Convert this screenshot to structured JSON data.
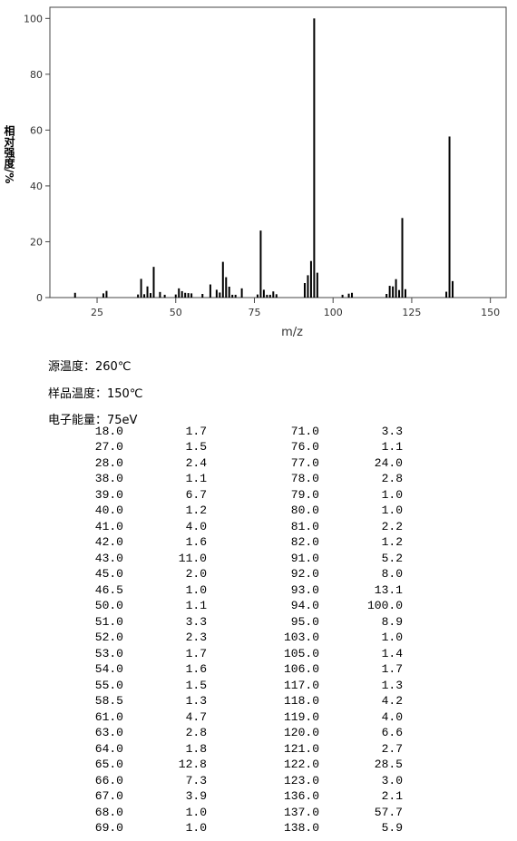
{
  "chart_data": {
    "type": "bar",
    "x_label": "m/z",
    "y_label": "相对强度/%",
    "x": [
      18,
      27,
      28,
      38,
      39,
      40,
      41,
      42,
      43,
      45,
      46.5,
      50,
      51,
      52,
      53,
      54,
      55,
      58.5,
      61,
      63,
      64,
      65,
      66,
      67,
      68,
      69,
      71,
      76,
      77,
      78,
      79,
      80,
      81,
      82,
      91,
      92,
      93,
      94,
      95,
      103,
      105,
      106,
      117,
      118,
      119,
      120,
      121,
      122,
      123,
      136,
      137,
      138
    ],
    "x_labels": [
      "18.0",
      "27.0",
      "28.0",
      "38.0",
      "39.0",
      "40.0",
      "41.0",
      "42.0",
      "43.0",
      "45.0",
      "46.5",
      "50.0",
      "51.0",
      "52.0",
      "53.0",
      "54.0",
      "55.0",
      "58.5",
      "61.0",
      "63.0",
      "64.0",
      "65.0",
      "66.0",
      "67.0",
      "68.0",
      "69.0",
      "71.0",
      "76.0",
      "77.0",
      "78.0",
      "79.0",
      "80.0",
      "81.0",
      "82.0",
      "91.0",
      "92.0",
      "93.0",
      "94.0",
      "95.0",
      "103.0",
      "105.0",
      "106.0",
      "117.0",
      "118.0",
      "119.0",
      "120.0",
      "121.0",
      "122.0",
      "123.0",
      "136.0",
      "137.0",
      "138.0"
    ],
    "values": [
      1.7,
      1.5,
      2.4,
      1.1,
      6.7,
      1.2,
      4.0,
      1.6,
      11.0,
      2.0,
      1.0,
      1.1,
      3.3,
      2.3,
      1.7,
      1.6,
      1.5,
      1.3,
      4.7,
      2.8,
      1.8,
      12.8,
      7.3,
      3.9,
      1.0,
      1.0,
      3.3,
      1.1,
      24.0,
      2.8,
      1.0,
      1.0,
      2.2,
      1.2,
      5.2,
      8.0,
      13.1,
      100.0,
      8.9,
      1.0,
      1.4,
      1.7,
      1.3,
      4.2,
      4.0,
      6.6,
      2.7,
      28.5,
      3.0,
      2.1,
      57.7,
      5.9
    ],
    "value_labels": [
      "1.7",
      "1.5",
      "2.4",
      "1.1",
      "6.7",
      "1.2",
      "4.0",
      "1.6",
      "11.0",
      "2.0",
      "1.0",
      "1.1",
      "3.3",
      "2.3",
      "1.7",
      "1.6",
      "1.5",
      "1.3",
      "4.7",
      "2.8",
      "1.8",
      "12.8",
      "7.3",
      "3.9",
      "1.0",
      "1.0",
      "3.3",
      "1.1",
      "24.0",
      "2.8",
      "1.0",
      "1.0",
      "2.2",
      "1.2",
      "5.2",
      "8.0",
      "13.1",
      "100.0",
      "8.9",
      "1.0",
      "1.4",
      "1.7",
      "1.3",
      "4.2",
      "4.0",
      "6.6",
      "2.7",
      "28.5",
      "3.0",
      "2.1",
      "57.7",
      "5.9"
    ],
    "xlim": [
      10,
      155
    ],
    "ylim": [
      0,
      104
    ],
    "xticks": [
      25,
      50,
      75,
      100,
      125,
      150
    ],
    "yticks": [
      0,
      20,
      40,
      60,
      80,
      100
    ],
    "color": "#000000"
  },
  "notes": [
    "源温度：260℃",
    "样品温度：150℃",
    "电子能量：75eV"
  ]
}
